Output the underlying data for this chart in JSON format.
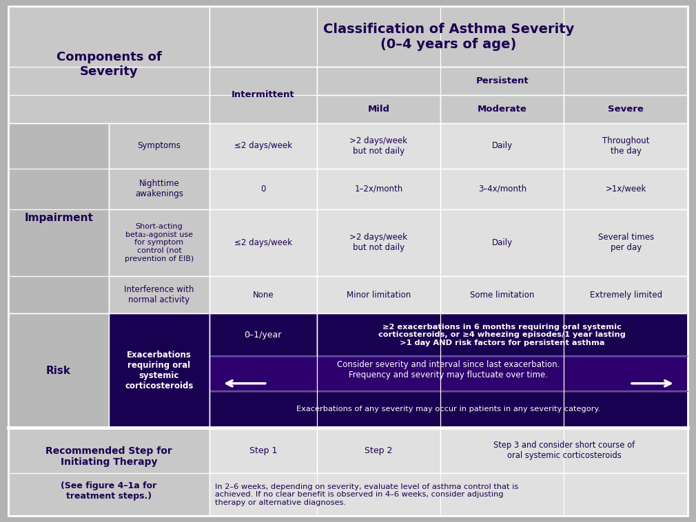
{
  "title": "Classification of Asthma Severity\n(0–4 years of age)",
  "bg_color": "#b2b2b2",
  "light_gray": "#c8c8c8",
  "mid_gray": "#b8b8b8",
  "white_cell": "#e0e0e0",
  "dark_purple": "#1a0050",
  "risk_dark": "#1a0050",
  "risk_medium": "#2d006e",
  "text_white": "#ffffff",
  "rows": {
    "components_label": "Components of\nSeverity",
    "persistent_label": "Persistent",
    "intermittent_label": "Intermittent",
    "mild_label": "Mild",
    "moderate_label": "Moderate",
    "severe_label": "Severe",
    "impairment_label": "Impairment",
    "risk_label": "Risk",
    "symptoms_label": "Symptoms",
    "nighttime_label": "Nighttime\nawakenings",
    "saba_label": "Short-acting\nbeta₂-agonist use\nfor symptom\ncontrol (not\nprevention of EIB)",
    "interference_label": "Interference with\nnormal activity",
    "exacerbations_label": "Exacerbations\nrequiring oral\nsystemic\ncorticosteroids",
    "symptoms_intermittent": "≤2 days/week",
    "symptoms_mild": ">2 days/week\nbut not daily",
    "symptoms_moderate": "Daily",
    "symptoms_severe": "Throughout\nthe day",
    "nighttime_intermittent": "0",
    "nighttime_mild": "1–2x/month",
    "nighttime_moderate": "3–4x/month",
    "nighttime_severe": ">1x/week",
    "saba_intermittent": "≤2 days/week",
    "saba_mild": ">2 days/week\nbut not daily",
    "saba_moderate": "Daily",
    "saba_severe": "Several times\nper day",
    "interference_intermittent": "None",
    "interference_mild": "Minor limitation",
    "interference_moderate": "Some limitation",
    "interference_severe": "Extremely limited",
    "risk_intermittent": "0–1/year",
    "risk_persistent": "≥2 exacerbations in 6 months requiring oral systemic\ncorticosteroids, or ≥4 wheezing episodes/1 year lasting\n>1 day AND risk factors for persistent asthma",
    "risk_note1": "Consider severity and interval since last exacerbation.\nFrequency and severity may fluctuate over time.",
    "risk_note2": "Exacerbations of any severity may occur in patients in any severity category.",
    "step_label1": "Recommended Step for\nInitiating Therapy",
    "step_label2": "(See figure 4–1a for\ntreatment steps.)",
    "step1": "Step 1",
    "step2": "Step 2",
    "step3": "Step 3 and consider short course of\noral systemic corticosteroids",
    "followup": "In 2–6 weeks, depending on severity, evaluate level of asthma control that is\nachieved. If no clear benefit is observed in 4–6 weeks, consider adjusting\ntherapy or alternative diagnoses."
  }
}
